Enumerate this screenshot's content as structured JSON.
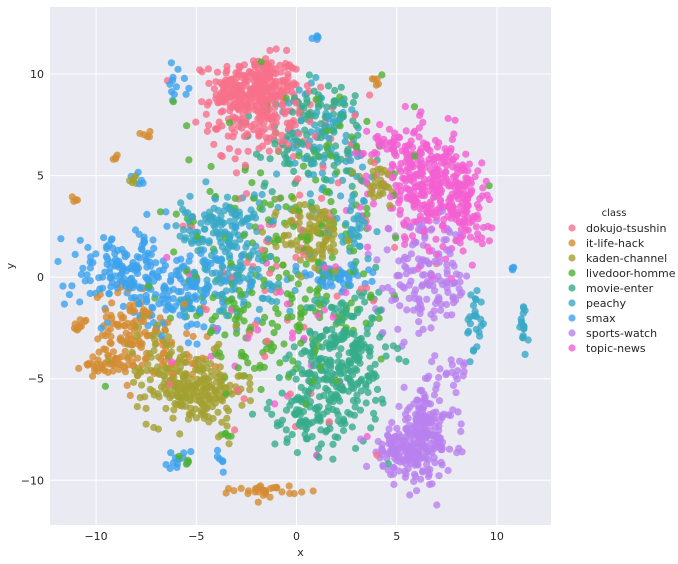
{
  "chart_data": {
    "type": "scatter",
    "title": "",
    "xlabel": "x",
    "ylabel": "y",
    "xlim": [
      -12.3,
      12.7
    ],
    "ylim": [
      -12.2,
      13.3
    ],
    "xticks": [
      -10,
      -5,
      0,
      5,
      10
    ],
    "yticks": [
      -10,
      -5,
      0,
      5,
      10
    ],
    "grid": true,
    "background": "#eaeaf2",
    "legend": {
      "title": "class",
      "placement": "right"
    },
    "series": [
      {
        "name": "dokujo-tsushin",
        "color": "#f77189",
        "clusters": [
          {
            "cx": -2.0,
            "cy": 9.3,
            "sx": 1.1,
            "sy": 0.8,
            "n": 260
          },
          {
            "cx": -1.5,
            "cy": 7.6,
            "sx": 1.4,
            "sy": 0.9,
            "n": 110
          },
          {
            "cx": -3.5,
            "cy": 8.7,
            "sx": 0.5,
            "sy": 0.3,
            "n": 25
          },
          {
            "cx": 0.0,
            "cy": 3.5,
            "sx": 2.5,
            "sy": 2.5,
            "n": 45
          },
          {
            "cx": -0.5,
            "cy": -3.5,
            "sx": 2.5,
            "sy": 2.5,
            "n": 25
          }
        ]
      },
      {
        "name": "it-life-hack",
        "color": "#d58c32",
        "clusters": [
          {
            "cx": -8.3,
            "cy": -2.8,
            "sx": 0.9,
            "sy": 1.1,
            "n": 110
          },
          {
            "cx": -9.5,
            "cy": -4.3,
            "sx": 0.6,
            "sy": 0.2,
            "n": 30
          },
          {
            "cx": -10.8,
            "cy": -2.4,
            "sx": 0.2,
            "sy": 0.2,
            "n": 10
          },
          {
            "cx": -1.5,
            "cy": -10.5,
            "sx": 0.8,
            "sy": 0.15,
            "n": 30
          },
          {
            "cx": 4.0,
            "cy": 9.6,
            "sx": 0.1,
            "sy": 0.1,
            "n": 5
          },
          {
            "cx": -7.5,
            "cy": 7.1,
            "sx": 0.15,
            "sy": 0.1,
            "n": 5
          },
          {
            "cx": -11.0,
            "cy": 3.8,
            "sx": 0.1,
            "sy": 0.1,
            "n": 4
          },
          {
            "cx": -9.0,
            "cy": 5.9,
            "sx": 0.1,
            "sy": 0.1,
            "n": 4
          },
          {
            "cx": -6.5,
            "cy": -4.5,
            "sx": 1.0,
            "sy": 1.0,
            "n": 25
          }
        ]
      },
      {
        "name": "kaden-channel",
        "color": "#a4a031",
        "clusters": [
          {
            "cx": -5.0,
            "cy": -5.5,
            "sx": 1.2,
            "sy": 0.9,
            "n": 220
          },
          {
            "cx": 0.8,
            "cy": 2.0,
            "sx": 0.8,
            "sy": 0.9,
            "n": 110
          },
          {
            "cx": 4.0,
            "cy": 4.5,
            "sx": 0.6,
            "sy": 0.6,
            "n": 30
          },
          {
            "cx": -8.0,
            "cy": 4.8,
            "sx": 0.2,
            "sy": 0.15,
            "n": 6
          },
          {
            "cx": -7.0,
            "cy": -4.0,
            "sx": 0.9,
            "sy": 1.0,
            "n": 50
          }
        ]
      },
      {
        "name": "livedoor-homme",
        "color": "#50b131",
        "clusters": [
          {
            "cx": 0.0,
            "cy": 3.0,
            "sx": 3.0,
            "sy": 3.5,
            "n": 160
          },
          {
            "cx": -1.5,
            "cy": -2.0,
            "sx": 2.5,
            "sy": 1.6,
            "n": 120
          },
          {
            "cx": -5.5,
            "cy": -9.0,
            "sx": 0.3,
            "sy": 0.1,
            "n": 5
          },
          {
            "cx": -3.5,
            "cy": -7.8,
            "sx": 0.2,
            "sy": 0.1,
            "n": 5
          }
        ]
      },
      {
        "name": "movie-enter",
        "color": "#36ad8a",
        "clusters": [
          {
            "cx": 2.3,
            "cy": -4.0,
            "sx": 1.1,
            "sy": 1.8,
            "n": 280
          },
          {
            "cx": 0.5,
            "cy": -6.5,
            "sx": 0.9,
            "sy": 1.0,
            "n": 90
          },
          {
            "cx": 0.5,
            "cy": 6.5,
            "sx": 1.6,
            "sy": 1.2,
            "n": 80
          },
          {
            "cx": 1.5,
            "cy": 8.3,
            "sx": 0.8,
            "sy": 0.8,
            "n": 40
          }
        ]
      },
      {
        "name": "peachy",
        "color": "#38a9c5",
        "clusters": [
          {
            "cx": -3.5,
            "cy": 2.5,
            "sx": 0.9,
            "sy": 0.8,
            "n": 110
          },
          {
            "cx": -3.0,
            "cy": 0.0,
            "sx": 1.5,
            "sy": 1.0,
            "n": 100
          },
          {
            "cx": 1.5,
            "cy": 6.5,
            "sx": 1.2,
            "sy": 1.4,
            "n": 90
          },
          {
            "cx": 3.0,
            "cy": 2.5,
            "sx": 0.6,
            "sy": 0.8,
            "n": 30
          },
          {
            "cx": 8.9,
            "cy": -2.3,
            "sx": 0.2,
            "sy": 0.9,
            "n": 25
          },
          {
            "cx": 11.3,
            "cy": -2.5,
            "sx": 0.1,
            "sy": 0.7,
            "n": 18
          },
          {
            "cx": -5.5,
            "cy": 2.7,
            "sx": 0.3,
            "sy": 0.7,
            "n": 12
          }
        ]
      },
      {
        "name": "smax",
        "color": "#3ba3ec",
        "clusters": [
          {
            "cx": -8.5,
            "cy": 0.3,
            "sx": 1.5,
            "sy": 1.0,
            "n": 150
          },
          {
            "cx": -5.5,
            "cy": -0.8,
            "sx": 1.4,
            "sy": 1.0,
            "n": 120
          },
          {
            "cx": 1.8,
            "cy": 0.0,
            "sx": 0.9,
            "sy": 0.3,
            "n": 50
          },
          {
            "cx": -6.0,
            "cy": 9.5,
            "sx": 0.3,
            "sy": 0.5,
            "n": 12
          },
          {
            "cx": -5.8,
            "cy": -8.8,
            "sx": 0.5,
            "sy": 0.3,
            "n": 12
          },
          {
            "cx": 1.0,
            "cy": 11.8,
            "sx": 0.1,
            "sy": 0.05,
            "n": 5
          },
          {
            "cx": 10.8,
            "cy": 0.4,
            "sx": 0.05,
            "sy": 0.05,
            "n": 4
          },
          {
            "cx": -3.8,
            "cy": -9.0,
            "sx": 0.2,
            "sy": 0.3,
            "n": 6
          },
          {
            "cx": -7.7,
            "cy": 4.8,
            "sx": 0.2,
            "sy": 0.2,
            "n": 5
          }
        ]
      },
      {
        "name": "sports-watch",
        "color": "#b981ef",
        "clusters": [
          {
            "cx": 6.3,
            "cy": -7.8,
            "sx": 0.8,
            "sy": 1.1,
            "n": 220
          },
          {
            "cx": 5.0,
            "cy": -8.8,
            "sx": 0.6,
            "sy": 0.5,
            "n": 70
          },
          {
            "cx": 6.5,
            "cy": -0.2,
            "sx": 1.1,
            "sy": 1.4,
            "n": 150
          },
          {
            "cx": 8.0,
            "cy": -4.5,
            "sx": 0.5,
            "sy": 0.3,
            "n": 15
          }
        ]
      },
      {
        "name": "topic-news",
        "color": "#f45fd2",
        "clusters": [
          {
            "cx": 6.5,
            "cy": 4.5,
            "sx": 1.2,
            "sy": 1.3,
            "n": 300
          },
          {
            "cx": 8.3,
            "cy": 3.5,
            "sx": 0.7,
            "sy": 0.9,
            "n": 80
          },
          {
            "cx": 5.0,
            "cy": 6.5,
            "sx": 0.8,
            "sy": 0.5,
            "n": 40
          },
          {
            "cx": 0.0,
            "cy": -2.0,
            "sx": 3.0,
            "sy": 3.0,
            "n": 30
          }
        ]
      }
    ]
  }
}
